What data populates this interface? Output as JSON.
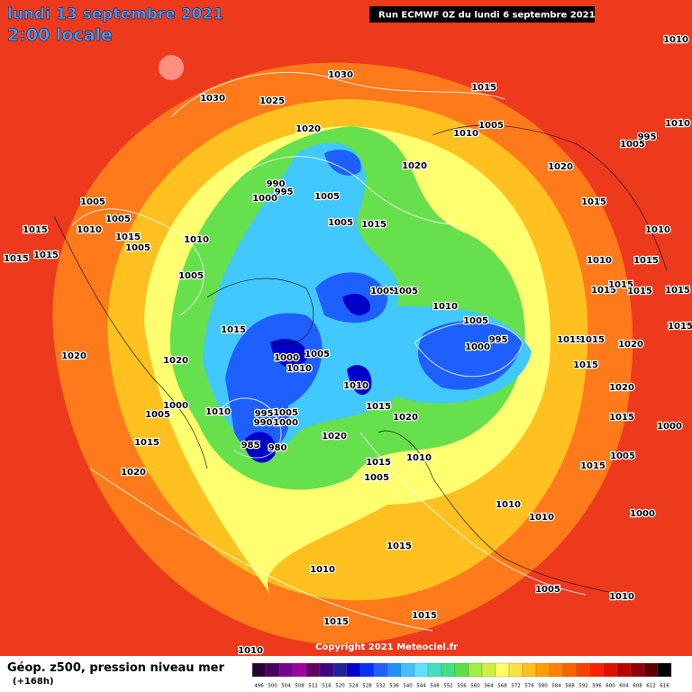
{
  "header": {
    "date": "lundi 13 septembre 2021",
    "time": "2:00 locale",
    "run": "Run ECMWF 0Z du lundi 6 septembre 2021"
  },
  "footer": {
    "field": "Géop. z500, pression niveau mer",
    "lead": "(+168h)",
    "copyright": "Copyright 2021 Meteociel.fr"
  },
  "legend": {
    "values": [
      496,
      500,
      504,
      508,
      512,
      516,
      520,
      524,
      528,
      532,
      536,
      540,
      544,
      548,
      552,
      556,
      560,
      564,
      568,
      572,
      576,
      580,
      584,
      588,
      592,
      596,
      600,
      604,
      608,
      612,
      616
    ],
    "colors": [
      "#2a0030",
      "#4a0060",
      "#7a0090",
      "#a000a0",
      "#600060",
      "#400080",
      "#2020a0",
      "#0000d0",
      "#0030ff",
      "#2060ff",
      "#2090ff",
      "#40c0ff",
      "#60e0ff",
      "#40e0c0",
      "#40e080",
      "#60e040",
      "#a0f040",
      "#d0f040",
      "#ffff60",
      "#ffe040",
      "#ffc020",
      "#ffa000",
      "#ff8000",
      "#ff6000",
      "#ff4000",
      "#ff2000",
      "#e01000",
      "#c00000",
      "#900000",
      "#600000",
      "#000000"
    ]
  },
  "isobar_labels": [
    1010,
    1030,
    1015,
    1030,
    1025,
    1020,
    1005,
    1010,
    1010,
    1005,
    995,
    1020,
    1020,
    990,
    995,
    1000,
    1005,
    1005,
    1015,
    1015,
    1005,
    1005,
    1010,
    1015,
    1015,
    1005,
    1010,
    1015,
    1015,
    1010,
    1005,
    1010,
    1015,
    1015,
    1015,
    1015,
    1015,
    1005,
    1005,
    1010,
    1005,
    995,
    1000,
    1015,
    1015,
    1015,
    1020,
    1015,
    1020,
    1020,
    1000,
    1005,
    1010,
    1010,
    1015,
    1020,
    1015,
    1020,
    1010,
    1000,
    1005,
    995,
    990,
    1005,
    1000,
    1020,
    1015,
    985,
    980,
    1015,
    1000,
    1010,
    1015,
    1005,
    1005,
    1020,
    1015,
    1010,
    1010,
    1000,
    1015,
    1010,
    1005,
    1010,
    1015,
    1015,
    1010
  ]
}
